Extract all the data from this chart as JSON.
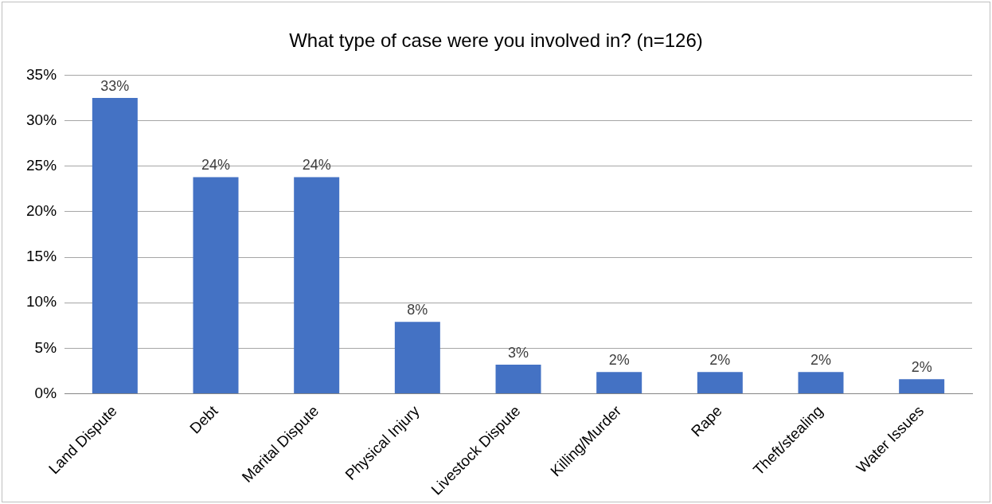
{
  "chart_data": {
    "type": "bar",
    "title": "What type of case were you involved in? (n=126)",
    "categories": [
      "Land Dispute",
      "Debt",
      "Marital Dispute",
      "Physical Injury",
      "Livestock Dispute",
      "Killing/Murder",
      "Rape",
      "Theft/stealing",
      "Water Issues"
    ],
    "values": [
      32.5,
      23.8,
      23.8,
      7.9,
      3.2,
      2.4,
      2.4,
      2.4,
      1.6
    ],
    "value_labels": [
      "33%",
      "24%",
      "24%",
      "8%",
      "3%",
      "2%",
      "2%",
      "2%",
      "2%"
    ],
    "color": "#4472c4",
    "ylim": [
      0,
      35
    ],
    "yticks": [
      {
        "value": 0,
        "label": "0%"
      },
      {
        "value": 5,
        "label": "5%"
      },
      {
        "value": 10,
        "label": "10%"
      },
      {
        "value": 15,
        "label": "15%"
      },
      {
        "value": 20,
        "label": "20%"
      },
      {
        "value": 25,
        "label": "25%"
      },
      {
        "value": 30,
        "label": "30%"
      },
      {
        "value": 35,
        "label": "35%"
      }
    ],
    "grid": "y",
    "legend": false
  }
}
